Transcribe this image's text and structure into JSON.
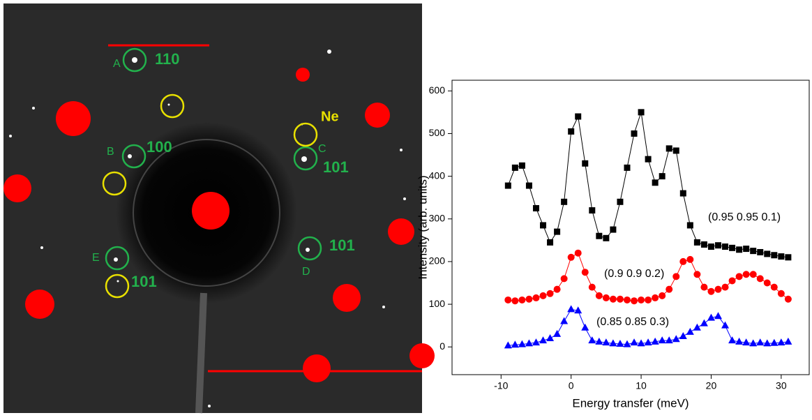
{
  "image": {
    "labels": [
      "A",
      "110",
      "B",
      "100",
      "C",
      "101",
      "Ne",
      "E",
      "D",
      "101",
      "101"
    ]
  },
  "chart_data": {
    "type": "line",
    "x_label": "Energy transfer (meV)",
    "y_label": "Intensity (arb. units)",
    "x": [
      -9,
      -8,
      -7,
      -6,
      -5,
      -4,
      -3,
      -2,
      -1,
      0,
      1,
      2,
      3,
      4,
      5,
      6,
      7,
      8,
      9,
      10,
      11,
      12,
      13,
      14,
      15,
      16,
      17,
      18,
      19,
      20,
      21,
      22,
      23,
      24,
      25,
      26,
      27,
      28,
      29,
      30,
      31
    ],
    "series": [
      {
        "name": "(0.95 0.95 0.1)",
        "color": "#000000",
        "marker": "square",
        "values": [
          378,
          420,
          425,
          378,
          325,
          285,
          245,
          270,
          340,
          505,
          540,
          430,
          320,
          260,
          255,
          275,
          340,
          420,
          500,
          550,
          440,
          385,
          400,
          465,
          460,
          360,
          285,
          245,
          240,
          235,
          238,
          235,
          232,
          228,
          230,
          225,
          222,
          218,
          215,
          212,
          210
        ]
      },
      {
        "name": "(0.9 0.9 0.2)",
        "color": "#ff0000",
        "marker": "circle",
        "values": [
          110,
          108,
          110,
          112,
          115,
          120,
          125,
          135,
          160,
          210,
          220,
          175,
          140,
          120,
          115,
          112,
          112,
          110,
          108,
          110,
          110,
          115,
          120,
          135,
          165,
          200,
          205,
          170,
          140,
          130,
          135,
          140,
          155,
          165,
          170,
          170,
          160,
          150,
          140,
          125,
          112
        ]
      },
      {
        "name": "(0.85 0.85 0.3)",
        "color": "#0000ff",
        "marker": "triangle",
        "values": [
          3,
          5,
          6,
          8,
          10,
          15,
          20,
          30,
          60,
          88,
          85,
          45,
          15,
          12,
          10,
          8,
          7,
          6,
          10,
          8,
          10,
          12,
          15,
          15,
          18,
          25,
          35,
          45,
          55,
          68,
          72,
          50,
          15,
          12,
          10,
          8,
          10,
          8,
          9,
          10,
          12
        ]
      }
    ],
    "xlim": [
      -17,
      34
    ],
    "ylim": [
      -65,
      625
    ],
    "xticks": [
      -10,
      0,
      10,
      20,
      30
    ],
    "yticks": [
      0,
      100,
      200,
      300,
      400,
      500,
      600
    ]
  }
}
